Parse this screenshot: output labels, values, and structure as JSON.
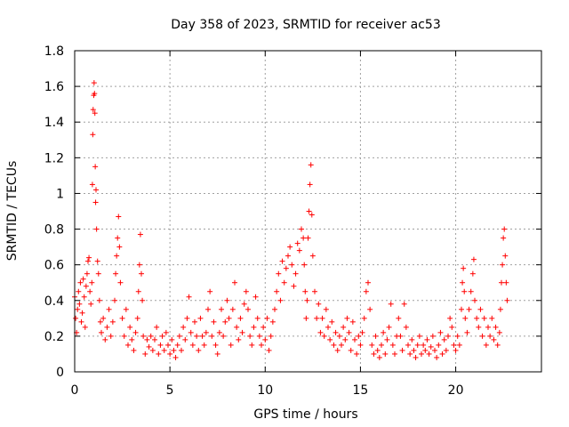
{
  "chart_data": {
    "type": "scatter",
    "title": "Day 358 of 2023, SRMTID for receiver ac53",
    "xlabel": "GPS time / hours",
    "ylabel": "SRMTID / TECUs",
    "xlim": [
      0,
      24.5
    ],
    "ylim": [
      0,
      1.8
    ],
    "xticks": [
      0,
      5,
      10,
      15,
      20
    ],
    "xtick_labels": [
      "0",
      "5",
      "10",
      "15",
      "20"
    ],
    "yticks": [
      0,
      0.2,
      0.4,
      0.6,
      0.8,
      1,
      1.2,
      1.4,
      1.6,
      1.8
    ],
    "ytick_labels": [
      "0",
      "0.2",
      "0.4",
      "0.6",
      "0.8",
      "1",
      "1.2",
      "1.4",
      "1.6",
      "1.8"
    ],
    "grid": true,
    "marker": "+",
    "color": "#ff0000",
    "series": [
      {
        "name": "SRMTID",
        "points": [
          [
            0.0,
            0.42
          ],
          [
            0.05,
            0.3
          ],
          [
            0.1,
            0.22
          ],
          [
            0.15,
            0.35
          ],
          [
            0.2,
            0.45
          ],
          [
            0.25,
            0.38
          ],
          [
            0.3,
            0.5
          ],
          [
            0.35,
            0.28
          ],
          [
            0.4,
            0.33
          ],
          [
            0.45,
            0.52
          ],
          [
            0.5,
            0.42
          ],
          [
            0.55,
            0.25
          ],
          [
            0.6,
            0.48
          ],
          [
            0.65,
            0.55
          ],
          [
            0.7,
            0.62
          ],
          [
            0.75,
            0.64
          ],
          [
            0.8,
            0.45
          ],
          [
            0.85,
            0.38
          ],
          [
            0.9,
            0.5
          ],
          [
            0.93,
            1.05
          ],
          [
            0.95,
            1.33
          ],
          [
            0.97,
            1.47
          ],
          [
            1.0,
            1.55
          ],
          [
            1.02,
            1.62
          ],
          [
            1.04,
            1.56
          ],
          [
            1.06,
            1.45
          ],
          [
            1.08,
            1.15
          ],
          [
            1.1,
            0.95
          ],
          [
            1.12,
            1.02
          ],
          [
            1.15,
            0.8
          ],
          [
            1.2,
            0.62
          ],
          [
            1.25,
            0.55
          ],
          [
            1.3,
            0.4
          ],
          [
            1.35,
            0.28
          ],
          [
            1.4,
            0.22
          ],
          [
            1.5,
            0.3
          ],
          [
            1.6,
            0.18
          ],
          [
            1.7,
            0.25
          ],
          [
            1.8,
            0.35
          ],
          [
            1.9,
            0.2
          ],
          [
            2.0,
            0.28
          ],
          [
            2.1,
            0.4
          ],
          [
            2.15,
            0.55
          ],
          [
            2.2,
            0.65
          ],
          [
            2.25,
            0.75
          ],
          [
            2.3,
            0.87
          ],
          [
            2.35,
            0.7
          ],
          [
            2.4,
            0.5
          ],
          [
            2.5,
            0.3
          ],
          [
            2.6,
            0.2
          ],
          [
            2.7,
            0.35
          ],
          [
            2.8,
            0.15
          ],
          [
            2.9,
            0.25
          ],
          [
            3.0,
            0.18
          ],
          [
            3.1,
            0.12
          ],
          [
            3.2,
            0.22
          ],
          [
            3.3,
            0.3
          ],
          [
            3.35,
            0.45
          ],
          [
            3.4,
            0.6
          ],
          [
            3.45,
            0.77
          ],
          [
            3.5,
            0.55
          ],
          [
            3.55,
            0.4
          ],
          [
            3.6,
            0.2
          ],
          [
            3.7,
            0.1
          ],
          [
            3.8,
            0.18
          ],
          [
            3.9,
            0.14
          ],
          [
            4.0,
            0.2
          ],
          [
            4.1,
            0.12
          ],
          [
            4.2,
            0.18
          ],
          [
            4.3,
            0.25
          ],
          [
            4.4,
            0.1
          ],
          [
            4.5,
            0.15
          ],
          [
            4.6,
            0.2
          ],
          [
            4.7,
            0.12
          ],
          [
            4.8,
            0.22
          ],
          [
            4.9,
            0.15
          ],
          [
            5.0,
            0.1
          ],
          [
            5.1,
            0.18
          ],
          [
            5.2,
            0.12
          ],
          [
            5.3,
            0.08
          ],
          [
            5.4,
            0.15
          ],
          [
            5.5,
            0.2
          ],
          [
            5.6,
            0.12
          ],
          [
            5.7,
            0.25
          ],
          [
            5.8,
            0.18
          ],
          [
            5.9,
            0.3
          ],
          [
            6.0,
            0.42
          ],
          [
            6.1,
            0.22
          ],
          [
            6.2,
            0.15
          ],
          [
            6.3,
            0.28
          ],
          [
            6.4,
            0.2
          ],
          [
            6.5,
            0.12
          ],
          [
            6.6,
            0.3
          ],
          [
            6.7,
            0.2
          ],
          [
            6.8,
            0.15
          ],
          [
            6.9,
            0.22
          ],
          [
            7.0,
            0.35
          ],
          [
            7.1,
            0.45
          ],
          [
            7.2,
            0.2
          ],
          [
            7.3,
            0.28
          ],
          [
            7.4,
            0.15
          ],
          [
            7.5,
            0.1
          ],
          [
            7.6,
            0.22
          ],
          [
            7.7,
            0.35
          ],
          [
            7.8,
            0.2
          ],
          [
            7.9,
            0.28
          ],
          [
            8.0,
            0.4
          ],
          [
            8.1,
            0.3
          ],
          [
            8.2,
            0.15
          ],
          [
            8.3,
            0.35
          ],
          [
            8.4,
            0.5
          ],
          [
            8.5,
            0.25
          ],
          [
            8.6,
            0.18
          ],
          [
            8.7,
            0.3
          ],
          [
            8.8,
            0.22
          ],
          [
            8.9,
            0.38
          ],
          [
            9.0,
            0.45
          ],
          [
            9.1,
            0.35
          ],
          [
            9.2,
            0.2
          ],
          [
            9.3,
            0.15
          ],
          [
            9.4,
            0.25
          ],
          [
            9.5,
            0.42
          ],
          [
            9.6,
            0.3
          ],
          [
            9.7,
            0.2
          ],
          [
            9.8,
            0.15
          ],
          [
            9.9,
            0.25
          ],
          [
            10.0,
            0.18
          ],
          [
            10.1,
            0.3
          ],
          [
            10.2,
            0.12
          ],
          [
            10.3,
            0.2
          ],
          [
            10.4,
            0.28
          ],
          [
            10.5,
            0.35
          ],
          [
            10.6,
            0.45
          ],
          [
            10.7,
            0.55
          ],
          [
            10.8,
            0.4
          ],
          [
            10.9,
            0.62
          ],
          [
            11.0,
            0.5
          ],
          [
            11.1,
            0.58
          ],
          [
            11.2,
            0.65
          ],
          [
            11.3,
            0.7
          ],
          [
            11.4,
            0.6
          ],
          [
            11.5,
            0.48
          ],
          [
            11.6,
            0.55
          ],
          [
            11.7,
            0.72
          ],
          [
            11.8,
            0.68
          ],
          [
            11.9,
            0.8
          ],
          [
            12.0,
            0.75
          ],
          [
            12.05,
            0.6
          ],
          [
            12.1,
            0.45
          ],
          [
            12.15,
            0.3
          ],
          [
            12.2,
            0.4
          ],
          [
            12.25,
            0.75
          ],
          [
            12.3,
            0.9
          ],
          [
            12.35,
            1.05
          ],
          [
            12.4,
            1.16
          ],
          [
            12.45,
            0.88
          ],
          [
            12.5,
            0.65
          ],
          [
            12.6,
            0.45
          ],
          [
            12.7,
            0.3
          ],
          [
            12.8,
            0.38
          ],
          [
            12.9,
            0.22
          ],
          [
            13.0,
            0.3
          ],
          [
            13.1,
            0.2
          ],
          [
            13.2,
            0.35
          ],
          [
            13.3,
            0.25
          ],
          [
            13.4,
            0.18
          ],
          [
            13.5,
            0.28
          ],
          [
            13.6,
            0.15
          ],
          [
            13.7,
            0.22
          ],
          [
            13.8,
            0.12
          ],
          [
            13.9,
            0.2
          ],
          [
            14.0,
            0.15
          ],
          [
            14.1,
            0.25
          ],
          [
            14.2,
            0.18
          ],
          [
            14.3,
            0.3
          ],
          [
            14.4,
            0.22
          ],
          [
            14.5,
            0.12
          ],
          [
            14.6,
            0.28
          ],
          [
            14.7,
            0.18
          ],
          [
            14.8,
            0.1
          ],
          [
            14.9,
            0.2
          ],
          [
            15.0,
            0.15
          ],
          [
            15.1,
            0.22
          ],
          [
            15.2,
            0.3
          ],
          [
            15.3,
            0.45
          ],
          [
            15.4,
            0.5
          ],
          [
            15.5,
            0.35
          ],
          [
            15.6,
            0.15
          ],
          [
            15.7,
            0.1
          ],
          [
            15.8,
            0.2
          ],
          [
            15.9,
            0.12
          ],
          [
            16.0,
            0.08
          ],
          [
            16.1,
            0.15
          ],
          [
            16.2,
            0.22
          ],
          [
            16.3,
            0.1
          ],
          [
            16.4,
            0.18
          ],
          [
            16.5,
            0.25
          ],
          [
            16.6,
            0.38
          ],
          [
            16.7,
            0.15
          ],
          [
            16.8,
            0.1
          ],
          [
            16.9,
            0.2
          ],
          [
            17.0,
            0.3
          ],
          [
            17.1,
            0.2
          ],
          [
            17.2,
            0.12
          ],
          [
            17.3,
            0.38
          ],
          [
            17.4,
            0.25
          ],
          [
            17.5,
            0.15
          ],
          [
            17.6,
            0.1
          ],
          [
            17.7,
            0.18
          ],
          [
            17.8,
            0.12
          ],
          [
            17.9,
            0.08
          ],
          [
            18.0,
            0.15
          ],
          [
            18.1,
            0.2
          ],
          [
            18.2,
            0.1
          ],
          [
            18.3,
            0.15
          ],
          [
            18.4,
            0.12
          ],
          [
            18.5,
            0.18
          ],
          [
            18.6,
            0.1
          ],
          [
            18.7,
            0.14
          ],
          [
            18.8,
            0.2
          ],
          [
            18.9,
            0.12
          ],
          [
            19.0,
            0.08
          ],
          [
            19.1,
            0.15
          ],
          [
            19.2,
            0.22
          ],
          [
            19.3,
            0.1
          ],
          [
            19.4,
            0.18
          ],
          [
            19.5,
            0.12
          ],
          [
            19.6,
            0.2
          ],
          [
            19.7,
            0.3
          ],
          [
            19.8,
            0.25
          ],
          [
            19.9,
            0.15
          ],
          [
            20.0,
            0.12
          ],
          [
            20.1,
            0.2
          ],
          [
            20.2,
            0.15
          ],
          [
            20.3,
            0.35
          ],
          [
            20.35,
            0.5
          ],
          [
            20.4,
            0.58
          ],
          [
            20.45,
            0.45
          ],
          [
            20.5,
            0.3
          ],
          [
            20.6,
            0.22
          ],
          [
            20.7,
            0.35
          ],
          [
            20.8,
            0.45
          ],
          [
            20.9,
            0.55
          ],
          [
            20.95,
            0.63
          ],
          [
            21.0,
            0.4
          ],
          [
            21.1,
            0.3
          ],
          [
            21.2,
            0.25
          ],
          [
            21.3,
            0.35
          ],
          [
            21.4,
            0.2
          ],
          [
            21.5,
            0.3
          ],
          [
            21.6,
            0.15
          ],
          [
            21.7,
            0.25
          ],
          [
            21.8,
            0.2
          ],
          [
            21.9,
            0.3
          ],
          [
            22.0,
            0.18
          ],
          [
            22.1,
            0.25
          ],
          [
            22.2,
            0.15
          ],
          [
            22.3,
            0.22
          ],
          [
            22.35,
            0.35
          ],
          [
            22.4,
            0.5
          ],
          [
            22.45,
            0.6
          ],
          [
            22.5,
            0.75
          ],
          [
            22.55,
            0.8
          ],
          [
            22.6,
            0.65
          ],
          [
            22.65,
            0.5
          ],
          [
            22.7,
            0.4
          ]
        ]
      }
    ]
  }
}
